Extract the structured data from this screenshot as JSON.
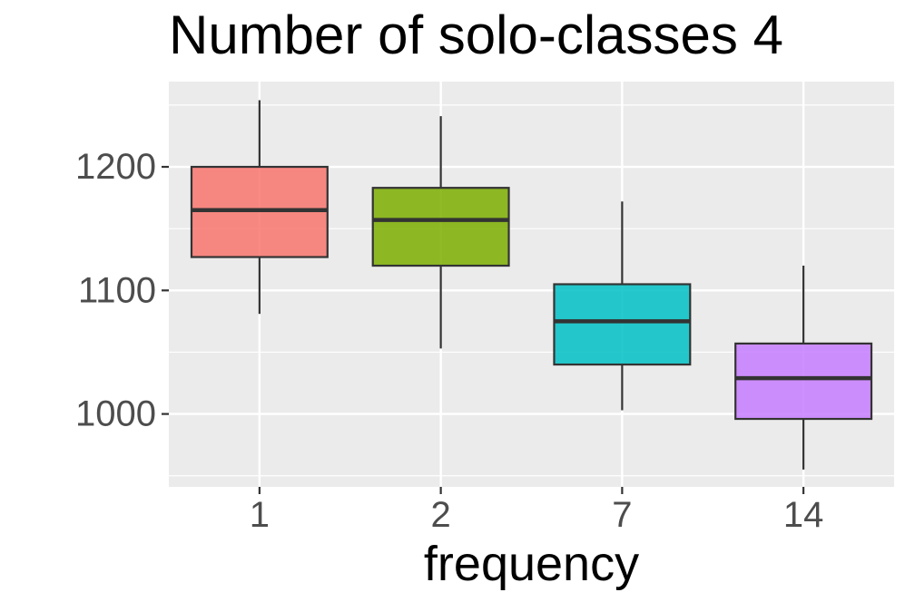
{
  "chart_data": {
    "type": "box",
    "title": "Number of solo-classes 4",
    "xlabel": "frequency",
    "ylabel": "",
    "categories": [
      "1",
      "2",
      "7",
      "14"
    ],
    "ylim": [
      941,
      1269
    ],
    "yticks": [
      1000,
      1100,
      1200
    ],
    "grid": true,
    "legend": "none",
    "boxes": [
      {
        "category": "1",
        "whisker_low": 1081,
        "q1": 1127,
        "median": 1165,
        "q3": 1200,
        "whisker_high": 1254,
        "color": "#F8766D"
      },
      {
        "category": "2",
        "whisker_low": 1053,
        "q1": 1120,
        "median": 1157,
        "q3": 1183,
        "whisker_high": 1241,
        "color": "#7CAE00"
      },
      {
        "category": "7",
        "whisker_low": 1003,
        "q1": 1040,
        "median": 1075,
        "q3": 1105,
        "whisker_high": 1172,
        "color": "#00BFC4"
      },
      {
        "category": "14",
        "whisker_low": 955,
        "q1": 996,
        "median": 1029,
        "q3": 1057,
        "whisker_high": 1120,
        "color": "#C77CFF"
      }
    ],
    "colors": {
      "panel_background": "#EBEBEB",
      "grid": "#FFFFFF",
      "box_outline": "#333333",
      "tick_text": "#4D4D4D"
    }
  }
}
